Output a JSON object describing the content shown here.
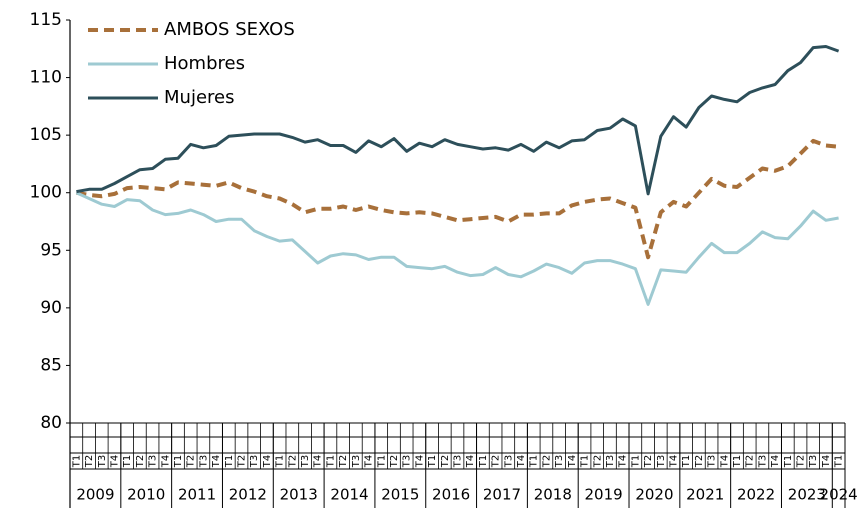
{
  "chart_data": {
    "type": "line",
    "categories": [
      "T1",
      "T2",
      "T3",
      "T4",
      "T1",
      "T2",
      "T3",
      "T4",
      "T1",
      "T2",
      "T3",
      "T4",
      "T1",
      "T2",
      "T3",
      "T4",
      "T1",
      "T2",
      "T3",
      "T4",
      "T1",
      "T2",
      "T3",
      "T4",
      "T1",
      "T2",
      "T3",
      "T4",
      "T1",
      "T2",
      "T3",
      "T4",
      "T1",
      "T2",
      "T3",
      "T4",
      "T1",
      "T2",
      "T3",
      "T4",
      "T1",
      "T2",
      "T3",
      "T4",
      "T1",
      "T2",
      "T3",
      "T4",
      "T1",
      "T2",
      "T3",
      "T4",
      "T1",
      "T2",
      "T3",
      "T4",
      "T1",
      "T2",
      "T3",
      "T4",
      "T1"
    ],
    "years": [
      "2009",
      "2010",
      "2011",
      "2012",
      "2013",
      "2014",
      "2015",
      "2016",
      "2017",
      "2018",
      "2019",
      "2020",
      "2021",
      "2022",
      "2023",
      "2024"
    ],
    "series": [
      {
        "name": "AMBOS SEXOS",
        "color": "#a8703a",
        "dashed": true,
        "values": [
          100,
          99.8,
          99.7,
          99.9,
          100.4,
          100.5,
          100.4,
          100.3,
          100.9,
          100.8,
          100.7,
          100.6,
          100.9,
          100.4,
          100.1,
          99.7,
          99.5,
          99.0,
          98.3,
          98.6,
          98.6,
          98.8,
          98.5,
          98.8,
          98.5,
          98.3,
          98.2,
          98.3,
          98.2,
          97.9,
          97.6,
          97.7,
          97.8,
          97.9,
          97.5,
          98.1,
          98.1,
          98.2,
          98.2,
          98.9,
          99.2,
          99.4,
          99.5,
          99.1,
          98.7,
          94.4,
          98.3,
          99.2,
          98.8,
          100.0,
          101.2,
          100.6,
          100.5,
          101.3,
          102.1,
          101.9,
          102.3,
          103.4,
          104.5,
          104.1,
          104.0
        ]
      },
      {
        "name": "Hombres",
        "color": "#9ecad2",
        "dashed": false,
        "values": [
          100,
          99.5,
          99.0,
          98.8,
          99.4,
          99.3,
          98.5,
          98.1,
          98.2,
          98.5,
          98.1,
          97.5,
          97.7,
          97.7,
          96.7,
          96.2,
          95.8,
          95.9,
          94.9,
          93.9,
          94.5,
          94.7,
          94.6,
          94.2,
          94.4,
          94.4,
          93.6,
          93.5,
          93.4,
          93.6,
          93.1,
          92.8,
          92.9,
          93.5,
          92.9,
          92.7,
          93.2,
          93.8,
          93.5,
          93.0,
          93.9,
          94.1,
          94.1,
          93.8,
          93.4,
          90.3,
          93.3,
          93.2,
          93.1,
          94.4,
          95.6,
          94.8,
          94.8,
          95.6,
          96.6,
          96.1,
          96.0,
          97.1,
          98.4,
          97.6,
          97.8
        ]
      },
      {
        "name": "Mujeres",
        "color": "#2d4f5a",
        "dashed": false,
        "values": [
          100.1,
          100.3,
          100.3,
          100.8,
          101.4,
          102.0,
          102.1,
          102.9,
          103.0,
          104.2,
          103.9,
          104.1,
          104.9,
          105.0,
          105.1,
          105.1,
          105.1,
          104.8,
          104.4,
          104.6,
          104.1,
          104.1,
          103.5,
          104.5,
          104.0,
          104.7,
          103.6,
          104.3,
          104.0,
          104.6,
          104.2,
          104.0,
          103.8,
          103.9,
          103.7,
          104.2,
          103.6,
          104.4,
          103.9,
          104.5,
          104.6,
          105.4,
          105.6,
          106.4,
          105.8,
          99.9,
          104.9,
          106.6,
          105.7,
          107.4,
          108.4,
          108.1,
          107.9,
          108.7,
          109.1,
          109.4,
          110.6,
          111.3,
          112.6,
          112.7,
          112.3
        ]
      }
    ],
    "ylim": [
      80,
      115
    ],
    "yticks": [
      80,
      85,
      90,
      95,
      100,
      105,
      110,
      115
    ],
    "legend": "top-left"
  }
}
